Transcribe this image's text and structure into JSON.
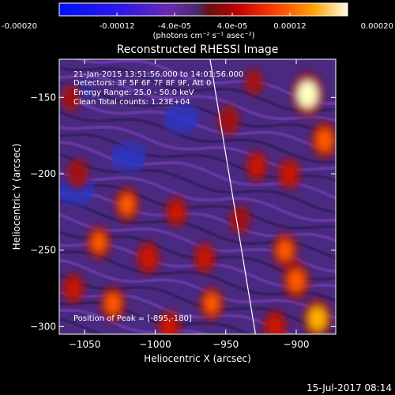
{
  "colorbar": {
    "tick_labels": [
      "-0.00020",
      "-0.00012",
      "-4.0e-05",
      "4.0e-05",
      "0.00012",
      "0.00020"
    ],
    "tick_values": [
      -0.0002,
      -0.00012,
      -4e-05,
      4e-05,
      0.00012,
      0.0002
    ],
    "range": [
      -0.0002,
      0.0002
    ],
    "unit_label": "(photons cm⁻² s⁻¹ asec⁻²)"
  },
  "chart_data": {
    "type": "heatmap",
    "title": "Reconstructed RHESSI Image",
    "xlabel": "Heliocentric X (arcsec)",
    "ylabel": "Heliocentric Y (arcsec)",
    "xlim": [
      -1068,
      -872
    ],
    "ylim": [
      -305,
      -125
    ],
    "x_ticks": [
      -1050,
      -1000,
      -950,
      -900
    ],
    "y_ticks": [
      -300,
      -250,
      -200,
      -150
    ],
    "x_tick_labels": [
      "−1050",
      "−1000",
      "−950",
      "−900"
    ],
    "y_tick_labels": [
      "−300",
      "−250",
      "−200",
      "−150"
    ],
    "annotations": [
      "21-Jan-2015 13:51:56.000 to 14:01:56.000",
      "Detectors: 3F 5F 6F 7F 8F 9F, Att 0",
      "Energy Range: 25.0 - 50.0 keV",
      "Clean    Total counts: 1.23E+04"
    ],
    "peak_label": "Position of Peak = [-895,-180]",
    "limb_line": [
      [
        -962,
        -120
      ],
      [
        -928,
        -310
      ]
    ],
    "sources": [
      {
        "x": -892,
        "y": -148,
        "value": 0.0002
      },
      {
        "x": -880,
        "y": -178,
        "value": 0.00014
      },
      {
        "x": -905,
        "y": -200,
        "value": 9e-05
      },
      {
        "x": -928,
        "y": -195,
        "value": 8e-05
      },
      {
        "x": -948,
        "y": -165,
        "value": 7e-05
      },
      {
        "x": -908,
        "y": -250,
        "value": 0.00012
      },
      {
        "x": -900,
        "y": -270,
        "value": 0.00014
      },
      {
        "x": -885,
        "y": -295,
        "value": 0.00016
      },
      {
        "x": -915,
        "y": -300,
        "value": 0.0001
      },
      {
        "x": -1020,
        "y": -220,
        "value": 0.00012
      },
      {
        "x": -1040,
        "y": -245,
        "value": 0.00011
      },
      {
        "x": -1005,
        "y": -255,
        "value": 0.0001
      },
      {
        "x": -1030,
        "y": -285,
        "value": 0.00012
      },
      {
        "x": -1055,
        "y": -200,
        "value": 7e-05
      },
      {
        "x": -985,
        "y": -225,
        "value": 8e-05
      },
      {
        "x": -965,
        "y": -255,
        "value": 8e-05
      },
      {
        "x": -960,
        "y": -285,
        "value": 0.00011
      },
      {
        "x": -990,
        "y": -300,
        "value": 9e-05
      },
      {
        "x": -1060,
        "y": -150,
        "value": 5e-05
      },
      {
        "x": -1058,
        "y": -275,
        "value": 8e-05
      },
      {
        "x": -930,
        "y": -140,
        "value": 4e-05
      },
      {
        "x": -940,
        "y": -230,
        "value": 6e-05
      }
    ]
  },
  "footer": {
    "timestamp": "15-Jul-2017 08:14"
  }
}
